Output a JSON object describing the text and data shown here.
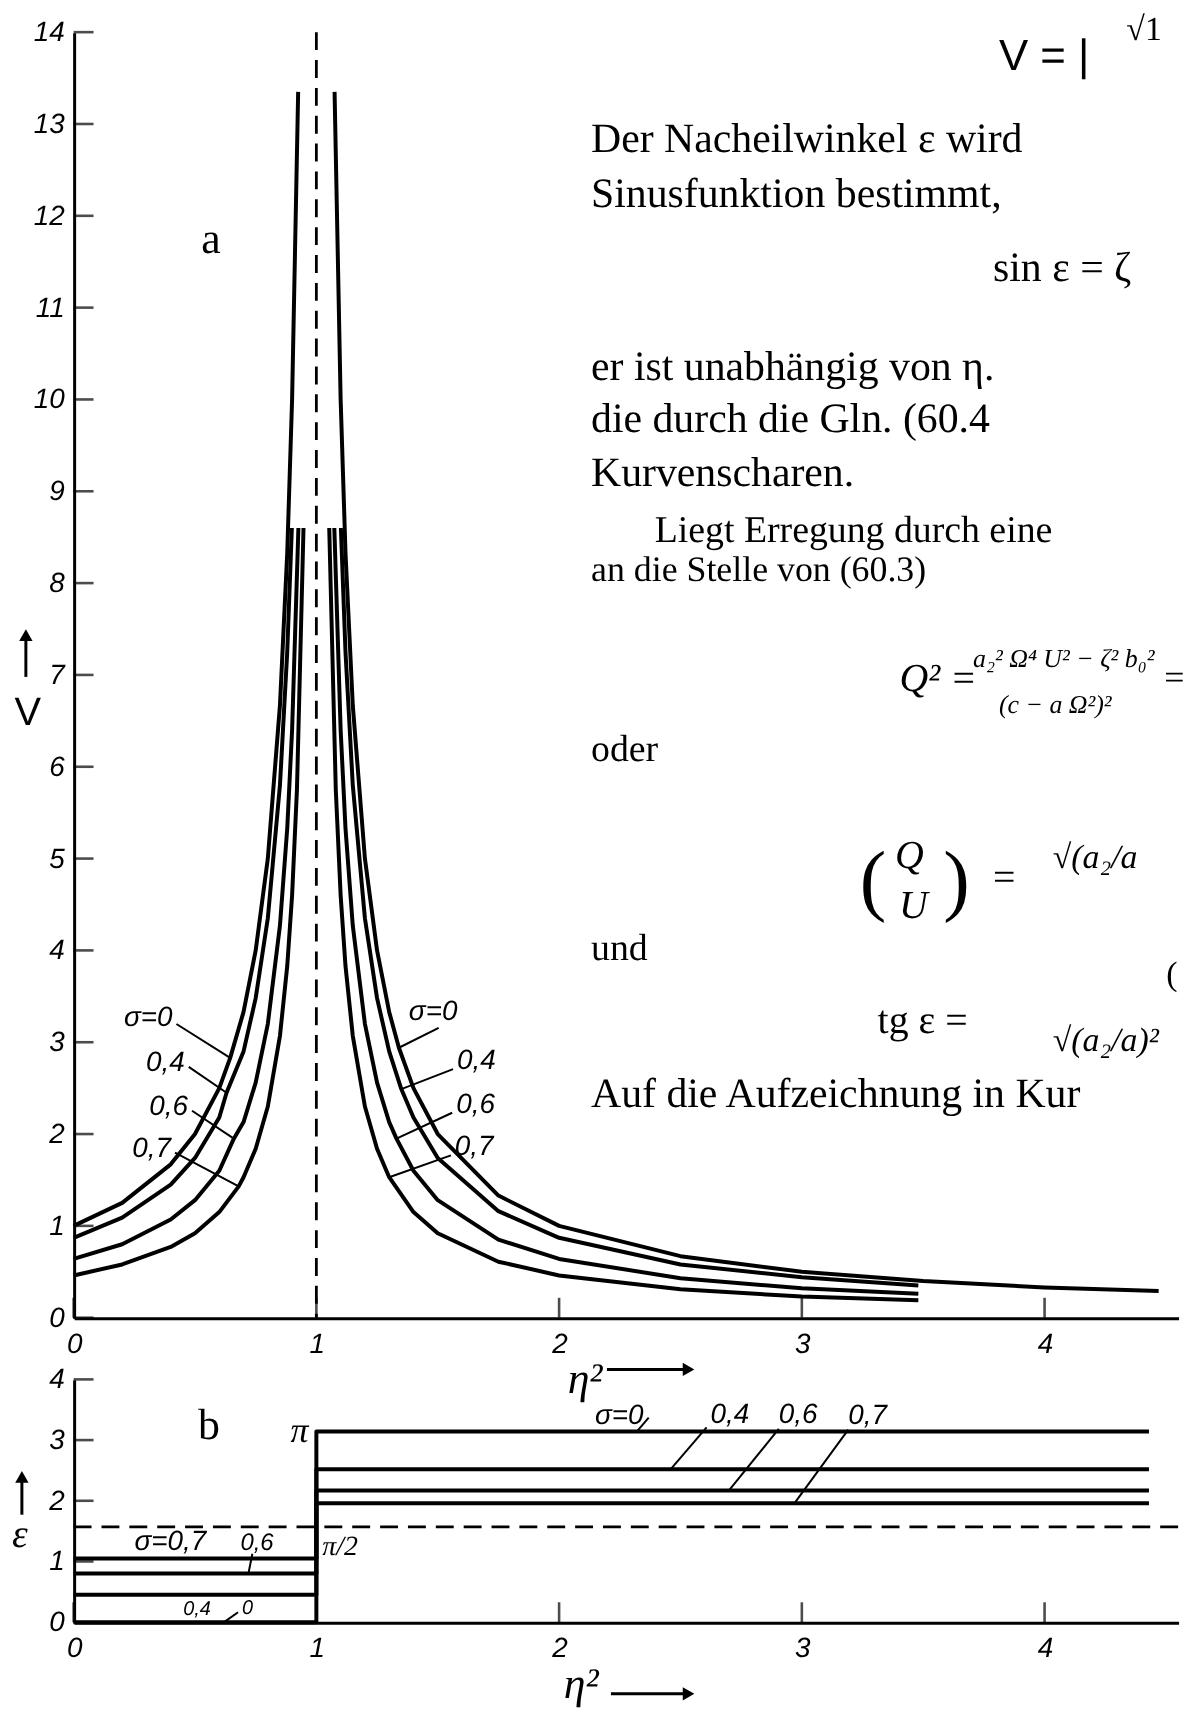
{
  "chart_data": [
    {
      "type": "line",
      "title": "a",
      "xlabel": "η²",
      "ylabel": "V",
      "xlim": [
        0,
        4.55
      ],
      "xticks": [
        0,
        1,
        2,
        3,
        4
      ],
      "ylim": [
        0,
        14
      ],
      "yticks": [
        0,
        1,
        2,
        3,
        4,
        5,
        6,
        7,
        8,
        9,
        10,
        11,
        12,
        13,
        14
      ],
      "series": [
        {
          "color": "#000000",
          "x": [
            0,
            0.2,
            0.4,
            0.5,
            0.6,
            0.645,
            0.7,
            0.75,
            0.8,
            0.85,
            0.88,
            0.9,
            0.925,
            1,
            1.075,
            1.1,
            1.12,
            1.15,
            1.2,
            1.25,
            1.3,
            1.34,
            1.4,
            1.5,
            1.75,
            2.0,
            2.5,
            3.0,
            3.5,
            4.0,
            4.47
          ],
          "values": [
            1.0,
            1.25,
            1.67,
            2.0,
            2.5,
            2.83,
            3.33,
            4.0,
            5.0,
            6.67,
            8.33,
            10.0,
            13.35,
            null,
            13.35,
            10.0,
            8.33,
            6.67,
            5.0,
            4.0,
            3.33,
            2.94,
            2.5,
            2.0,
            1.33,
            1.0,
            0.67,
            0.5,
            0.4,
            0.33,
            0.29
          ]
        },
        {
          "color": "#000000",
          "x": [
            0,
            0.2,
            0.4,
            0.5,
            0.6,
            0.63,
            0.7,
            0.75,
            0.8,
            0.85,
            0.88,
            0.899,
            1,
            1.101,
            1.12,
            1.15,
            1.2,
            1.25,
            1.3,
            1.35,
            1.4,
            1.5,
            1.75,
            2.0,
            2.5,
            3.0,
            3.48
          ],
          "values": [
            0.87,
            1.09,
            1.45,
            1.74,
            2.18,
            2.45,
            2.9,
            3.48,
            4.35,
            5.8,
            7.25,
            8.6,
            null,
            8.6,
            7.25,
            5.8,
            4.35,
            3.48,
            2.9,
            2.49,
            2.18,
            1.74,
            1.16,
            0.87,
            0.58,
            0.44,
            0.35
          ]
        },
        {
          "color": "#000000",
          "x": [
            0,
            0.2,
            0.4,
            0.5,
            0.6,
            0.66,
            0.7,
            0.75,
            0.8,
            0.85,
            0.88,
            0.9,
            0.926,
            1,
            1.074,
            1.1,
            1.12,
            1.15,
            1.2,
            1.25,
            1.3,
            1.33,
            1.4,
            1.5,
            1.75,
            2.0,
            2.5,
            3.0,
            3.48
          ],
          "values": [
            0.64,
            0.8,
            1.07,
            1.28,
            1.6,
            1.95,
            2.13,
            2.56,
            3.2,
            4.27,
            5.33,
            6.4,
            8.6,
            null,
            8.6,
            6.4,
            5.33,
            4.27,
            3.2,
            2.56,
            2.13,
            1.95,
            1.6,
            1.28,
            0.85,
            0.64,
            0.43,
            0.32,
            0.26
          ]
        },
        {
          "color": "#000000",
          "x": [
            0,
            0.2,
            0.4,
            0.5,
            0.6,
            0.68,
            0.7,
            0.75,
            0.8,
            0.85,
            0.88,
            0.9,
            0.92,
            0.947,
            1,
            1.053,
            1.08,
            1.1,
            1.12,
            1.15,
            1.2,
            1.25,
            1.3,
            1.4,
            1.5,
            1.75,
            2.0,
            2.5,
            3.0,
            3.48
          ],
          "values": [
            0.46,
            0.58,
            0.77,
            0.92,
            1.15,
            1.43,
            1.53,
            1.84,
            2.3,
            3.07,
            3.83,
            4.6,
            5.75,
            8.6,
            null,
            8.6,
            5.75,
            4.6,
            3.83,
            3.07,
            2.3,
            1.84,
            1.53,
            1.15,
            0.92,
            0.61,
            0.46,
            0.31,
            0.23,
            0.19
          ]
        }
      ],
      "ref_lines": [
        {
          "axis": "x",
          "value": 1,
          "line_style": "dashed"
        }
      ],
      "annotations": [
        {
          "text": "σ=0",
          "x": 1.34,
          "y": 2.94
        },
        {
          "text": "0,4",
          "x": 1.35,
          "y": 2.49
        },
        {
          "text": "0,6",
          "x": 1.33,
          "y": 1.95
        },
        {
          "text": "0,7",
          "x": 1.3,
          "y": 1.53
        },
        {
          "text": "σ=0",
          "x": 0.645,
          "y": 2.83
        },
        {
          "text": "0,4",
          "x": 0.63,
          "y": 2.45
        },
        {
          "text": "0,6",
          "x": 0.66,
          "y": 1.95
        },
        {
          "text": "0,7",
          "x": 0.68,
          "y": 1.43
        },
        "V = |",
        "√1",
        "Der Nacheilwinkel ε wird",
        "Sinusfunktion bestimmt,",
        "sin ε = ζ",
        "er ist unabhängig von η.",
        "die durch die Gln. (60.4",
        "Kurvenscharen.",
        "Liegt Erregung durch eine",
        "an die Stelle von (60.3)",
        "Q² =",
        "a₂² Ω⁴ U² − ζ² b₀²",
        "(c − a Ω²)²",
        "=",
        "oder",
        "(",
        "Q",
        "U",
        ")",
        "=",
        "√(a₂/a",
        "und",
        "tg ε =",
        "(",
        "√(a₂/a)²",
        "Auf die Aufzeichnung in Kur"
      ]
    },
    {
      "type": "step",
      "title": "b",
      "xlabel": "η²",
      "ylabel": "ε",
      "xlim": [
        0,
        4.55
      ],
      "xticks": [
        0,
        1,
        2,
        3,
        4
      ],
      "ylim": [
        0,
        4
      ],
      "yticks": [
        0,
        1,
        2,
        3,
        4
      ],
      "series": [
        {
          "color": "#000000",
          "x": [
            0,
            1,
            4.43
          ],
          "values": [
            0,
            3.14,
            3.14
          ]
        },
        {
          "color": "#000000",
          "x": [
            0,
            1,
            4.43
          ],
          "values": [
            0.45,
            2.52,
            2.52
          ]
        },
        {
          "color": "#000000",
          "x": [
            0,
            1,
            4.43
          ],
          "values": [
            0.8,
            2.17,
            2.17
          ]
        },
        {
          "color": "#000000",
          "x": [
            0,
            1,
            4.43
          ],
          "values": [
            1.05,
            1.96,
            1.96
          ]
        }
      ],
      "ref_lines": [
        {
          "axis": "y",
          "value": 1.57,
          "line_style": "dashed"
        }
      ],
      "annotations": [
        {
          "text": "σ=0",
          "x": 2.32,
          "y": 3.14
        },
        {
          "text": "0,4",
          "x": 2.46,
          "y": 2.52
        },
        {
          "text": "0,6",
          "x": 2.7,
          "y": 2.17
        },
        {
          "text": "0,7",
          "x": 2.97,
          "y": 1.96
        },
        {
          "text": "π",
          "x": 1,
          "y": 3.14
        },
        {
          "text": "π/2",
          "x": 1,
          "y": 1.57
        },
        {
          "text": "σ=0,7",
          "x": 0.3,
          "y": 1.05
        },
        {
          "text": "0,6",
          "x": 0.72,
          "y": 0.8
        },
        {
          "text": "0,4",
          "x": 0.55,
          "y": 0.45
        },
        {
          "text": "0",
          "x": 0.62,
          "y": 0
        }
      ]
    }
  ]
}
